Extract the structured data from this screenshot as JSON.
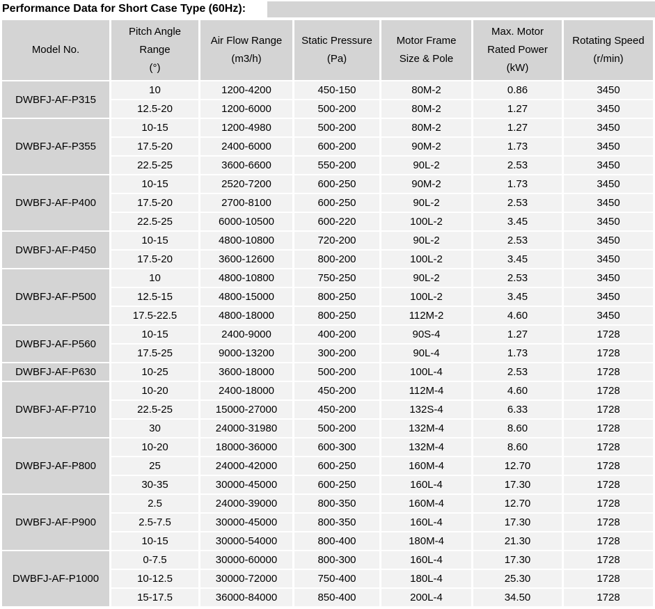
{
  "title": "Performance Data for Short Case Type (60Hz):",
  "colors": {
    "header_bg": "#d4d4d4",
    "model_bg": "#d4d4d4",
    "row_bg": "#f2f2f2",
    "gap": "#ffffff",
    "text": "#000000"
  },
  "table": {
    "headers": [
      {
        "lines": [
          "Model No."
        ]
      },
      {
        "lines": [
          "Pitch Angle",
          "Range",
          "(°)"
        ]
      },
      {
        "lines": [
          "Air Flow Range",
          "(m3/h)"
        ]
      },
      {
        "lines": [
          "Static Pressure",
          "(Pa)"
        ]
      },
      {
        "lines": [
          "Motor Frame",
          "Size & Pole"
        ]
      },
      {
        "lines": [
          "Max. Motor",
          "Rated Power",
          "(kW)"
        ]
      },
      {
        "lines": [
          "Rotating Speed",
          "(r/min)"
        ]
      }
    ],
    "groups": [
      {
        "model": "DWBFJ-AF-P315",
        "rows": [
          [
            "10",
            "1200-4200",
            "450-150",
            "80M-2",
            "0.86",
            "3450"
          ],
          [
            "12.5-20",
            "1200-6000",
            "500-200",
            "80M-2",
            "1.27",
            "3450"
          ]
        ]
      },
      {
        "model": "DWBFJ-AF-P355",
        "rows": [
          [
            "10-15",
            "1200-4980",
            "500-200",
            "80M-2",
            "1.27",
            "3450"
          ],
          [
            "17.5-20",
            "2400-6000",
            "600-200",
            "90M-2",
            "1.73",
            "3450"
          ],
          [
            "22.5-25",
            "3600-6600",
            "550-200",
            "90L-2",
            "2.53",
            "3450"
          ]
        ]
      },
      {
        "model": "DWBFJ-AF-P400",
        "rows": [
          [
            "10-15",
            "2520-7200",
            "600-250",
            "90M-2",
            "1.73",
            "3450"
          ],
          [
            "17.5-20",
            "2700-8100",
            "600-250",
            "90L-2",
            "2.53",
            "3450"
          ],
          [
            "22.5-25",
            "6000-10500",
            "600-220",
            "100L-2",
            "3.45",
            "3450"
          ]
        ]
      },
      {
        "model": "DWBFJ-AF-P450",
        "rows": [
          [
            "10-15",
            "4800-10800",
            "720-200",
            "90L-2",
            "2.53",
            "3450"
          ],
          [
            "17.5-20",
            "3600-12600",
            "800-200",
            "100L-2",
            "3.45",
            "3450"
          ]
        ]
      },
      {
        "model": "DWBFJ-AF-P500",
        "rows": [
          [
            "10",
            "4800-10800",
            "750-250",
            "90L-2",
            "2.53",
            "3450"
          ],
          [
            "12.5-15",
            "4800-15000",
            "800-250",
            "100L-2",
            "3.45",
            "3450"
          ],
          [
            "17.5-22.5",
            "4800-18000",
            "800-250",
            "112M-2",
            "4.60",
            "3450"
          ]
        ]
      },
      {
        "model": "DWBFJ-AF-P560",
        "rows": [
          [
            "10-15",
            "2400-9000",
            "400-200",
            "90S-4",
            "1.27",
            "1728"
          ],
          [
            "17.5-25",
            "9000-13200",
            "300-200",
            "90L-4",
            "1.73",
            "1728"
          ]
        ]
      },
      {
        "model": "DWBFJ-AF-P630",
        "rows": [
          [
            "10-25",
            "3600-18000",
            "500-200",
            "100L-4",
            "2.53",
            "1728"
          ]
        ]
      },
      {
        "model": "DWBFJ-AF-P710",
        "rows": [
          [
            "10-20",
            "2400-18000",
            "450-200",
            "112M-4",
            "4.60",
            "1728"
          ],
          [
            "22.5-25",
            "15000-27000",
            "450-200",
            "132S-4",
            "6.33",
            "1728"
          ],
          [
            "30",
            "24000-31980",
            "500-200",
            "132M-4",
            "8.60",
            "1728"
          ]
        ]
      },
      {
        "model": "DWBFJ-AF-P800",
        "rows": [
          [
            "10-20",
            "18000-36000",
            "600-300",
            "132M-4",
            "8.60",
            "1728"
          ],
          [
            "25",
            "24000-42000",
            "600-250",
            "160M-4",
            "12.70",
            "1728"
          ],
          [
            "30-35",
            "30000-45000",
            "600-250",
            "160L-4",
            "17.30",
            "1728"
          ]
        ]
      },
      {
        "model": "DWBFJ-AF-P900",
        "rows": [
          [
            "2.5",
            "24000-39000",
            "800-350",
            "160M-4",
            "12.70",
            "1728"
          ],
          [
            "2.5-7.5",
            "30000-45000",
            "800-350",
            "160L-4",
            "17.30",
            "1728"
          ],
          [
            "10-15",
            "30000-54000",
            "800-400",
            "180M-4",
            "21.30",
            "1728"
          ]
        ]
      },
      {
        "model": "DWBFJ-AF-P1000",
        "rows": [
          [
            "0-7.5",
            "30000-60000",
            "800-300",
            "160L-4",
            "17.30",
            "1728"
          ],
          [
            "10-12.5",
            "30000-72000",
            "750-400",
            "180L-4",
            "25.30",
            "1728"
          ],
          [
            "15-17.5",
            "36000-84000",
            "850-400",
            "200L-4",
            "34.50",
            "1728"
          ]
        ]
      }
    ]
  }
}
